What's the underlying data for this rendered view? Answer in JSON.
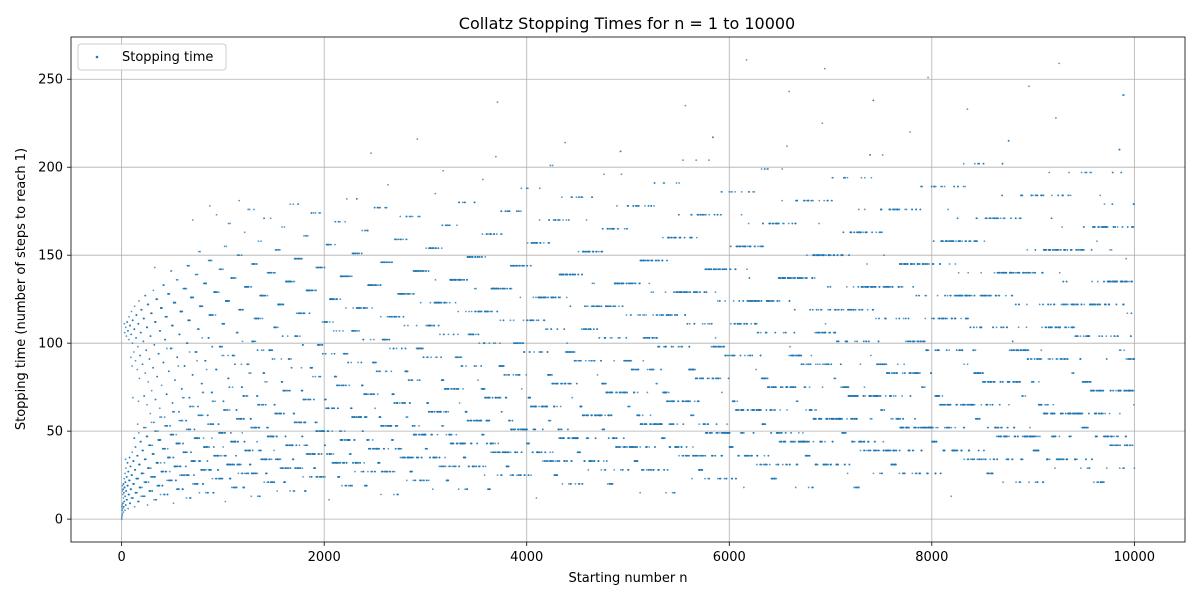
{
  "chart_data": {
    "type": "scatter",
    "title": "Collatz Stopping Times for n = 1 to 10000",
    "xlabel": "Starting number n",
    "ylabel": "Stopping time (number of steps to reach 1)",
    "xlim": [
      -500,
      10500
    ],
    "ylim": [
      -13,
      274
    ],
    "x_ticks": [
      0,
      2000,
      4000,
      6000,
      8000,
      10000
    ],
    "x_tick_labels": [
      "0",
      "2000",
      "4000",
      "6000",
      "8000",
      "10000"
    ],
    "y_ticks": [
      0,
      50,
      100,
      150,
      200,
      250
    ],
    "y_tick_labels": [
      "0",
      "50",
      "100",
      "150",
      "200",
      "250"
    ],
    "grid": true,
    "legend_position": "top-left",
    "series": [
      {
        "name": "Stopping time",
        "color": "#1f77b4",
        "marker": "point",
        "x_start": 1,
        "x_end": 10000,
        "rule": "Collatz stopping time: steps to reach 1 starting from n"
      }
    ]
  }
}
